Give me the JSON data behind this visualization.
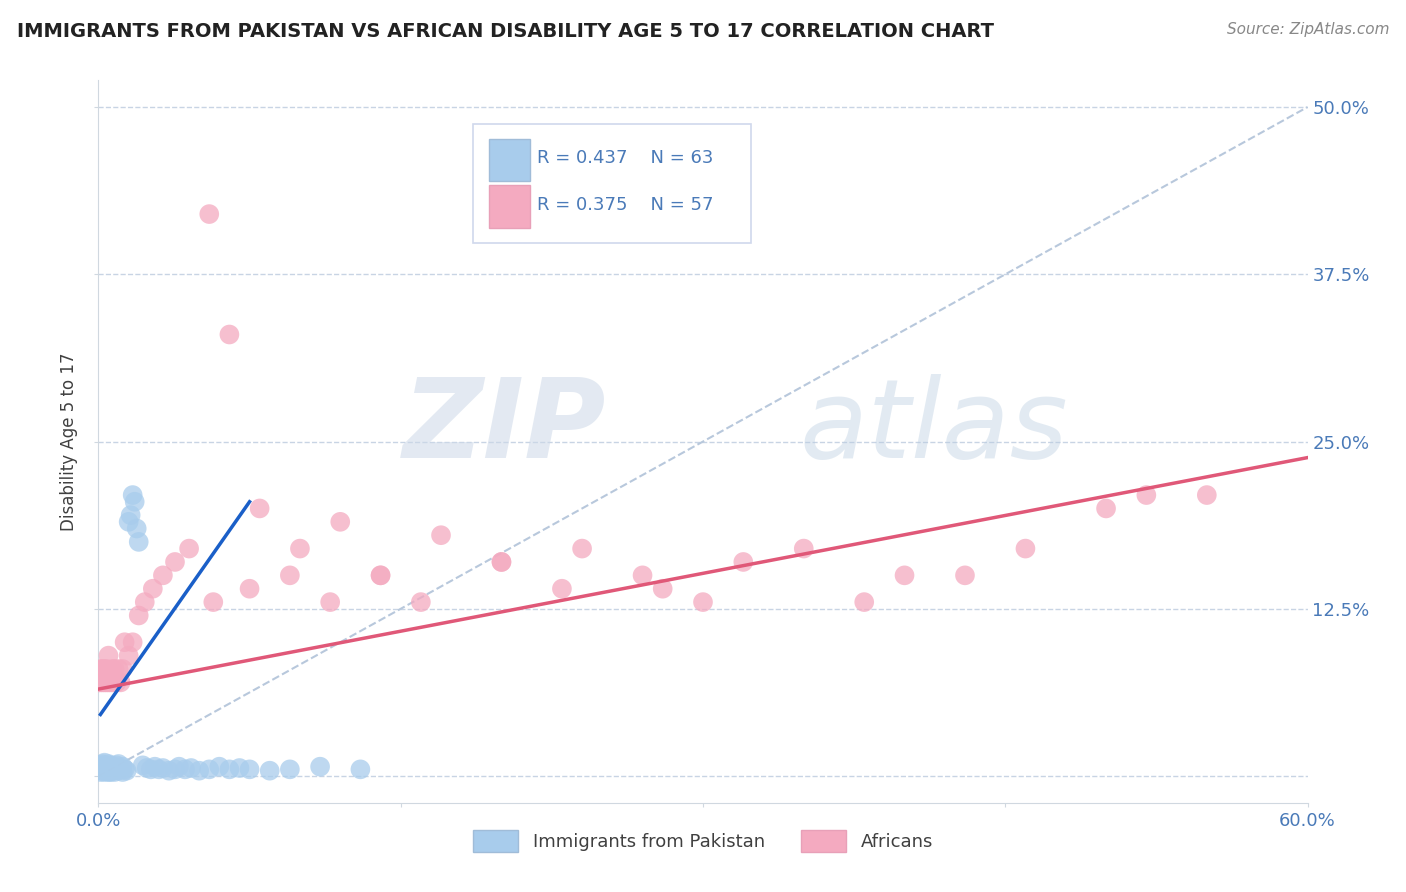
{
  "title": "IMMIGRANTS FROM PAKISTAN VS AFRICAN DISABILITY AGE 5 TO 17 CORRELATION CHART",
  "source": "Source: ZipAtlas.com",
  "ylabel": "Disability Age 5 to 17",
  "xlim": [
    0.0,
    0.6
  ],
  "ylim": [
    -0.02,
    0.52
  ],
  "blue_R": 0.437,
  "blue_N": 63,
  "pink_R": 0.375,
  "pink_N": 57,
  "blue_scatter_color": "#a8ccec",
  "pink_scatter_color": "#f4aac0",
  "trendline_blue_color": "#1a5fc8",
  "trendline_pink_color": "#e05878",
  "diag_color": "#b8c8dc",
  "background_color": "#ffffff",
  "grid_color": "#c8d4e4",
  "blue_trendline_x": [
    0.001,
    0.075
  ],
  "blue_trendline_y": [
    0.046,
    0.205
  ],
  "pink_trendline_x": [
    0.0,
    0.6
  ],
  "pink_trendline_y": [
    0.065,
    0.238
  ],
  "blue_x": [
    0.001,
    0.001,
    0.001,
    0.002,
    0.002,
    0.002,
    0.002,
    0.003,
    0.003,
    0.003,
    0.003,
    0.003,
    0.004,
    0.004,
    0.004,
    0.005,
    0.005,
    0.005,
    0.005,
    0.006,
    0.006,
    0.006,
    0.007,
    0.007,
    0.008,
    0.008,
    0.009,
    0.009,
    0.01,
    0.01,
    0.01,
    0.011,
    0.012,
    0.012,
    0.013,
    0.014,
    0.015,
    0.016,
    0.017,
    0.018,
    0.019,
    0.02,
    0.022,
    0.024,
    0.026,
    0.028,
    0.03,
    0.032,
    0.035,
    0.038,
    0.04,
    0.043,
    0.046,
    0.05,
    0.055,
    0.06,
    0.065,
    0.07,
    0.075,
    0.085,
    0.095,
    0.11,
    0.13
  ],
  "blue_y": [
    0.005,
    0.008,
    0.003,
    0.006,
    0.009,
    0.004,
    0.007,
    0.005,
    0.008,
    0.003,
    0.006,
    0.01,
    0.004,
    0.007,
    0.005,
    0.003,
    0.006,
    0.009,
    0.004,
    0.005,
    0.008,
    0.003,
    0.006,
    0.004,
    0.007,
    0.003,
    0.005,
    0.008,
    0.004,
    0.006,
    0.009,
    0.005,
    0.003,
    0.007,
    0.005,
    0.004,
    0.19,
    0.195,
    0.21,
    0.205,
    0.185,
    0.175,
    0.008,
    0.006,
    0.005,
    0.007,
    0.005,
    0.006,
    0.004,
    0.005,
    0.007,
    0.005,
    0.006,
    0.004,
    0.005,
    0.007,
    0.005,
    0.006,
    0.005,
    0.004,
    0.005,
    0.007,
    0.005
  ],
  "pink_x": [
    0.0,
    0.001,
    0.001,
    0.002,
    0.002,
    0.003,
    0.003,
    0.004,
    0.004,
    0.005,
    0.005,
    0.006,
    0.007,
    0.007,
    0.008,
    0.009,
    0.01,
    0.011,
    0.012,
    0.013,
    0.015,
    0.017,
    0.02,
    0.023,
    0.027,
    0.032,
    0.038,
    0.045,
    0.055,
    0.065,
    0.08,
    0.1,
    0.12,
    0.14,
    0.17,
    0.2,
    0.24,
    0.28,
    0.32,
    0.38,
    0.43,
    0.5,
    0.55,
    0.057,
    0.075,
    0.095,
    0.115,
    0.14,
    0.16,
    0.2,
    0.23,
    0.27,
    0.3,
    0.35,
    0.4,
    0.46,
    0.52
  ],
  "pink_y": [
    0.07,
    0.07,
    0.08,
    0.07,
    0.08,
    0.07,
    0.08,
    0.07,
    0.08,
    0.07,
    0.09,
    0.07,
    0.08,
    0.07,
    0.08,
    0.07,
    0.08,
    0.07,
    0.08,
    0.1,
    0.09,
    0.1,
    0.12,
    0.13,
    0.14,
    0.15,
    0.16,
    0.17,
    0.42,
    0.33,
    0.2,
    0.17,
    0.19,
    0.15,
    0.18,
    0.16,
    0.17,
    0.14,
    0.16,
    0.13,
    0.15,
    0.2,
    0.21,
    0.13,
    0.14,
    0.15,
    0.13,
    0.15,
    0.13,
    0.16,
    0.14,
    0.15,
    0.13,
    0.17,
    0.15,
    0.17,
    0.21
  ]
}
